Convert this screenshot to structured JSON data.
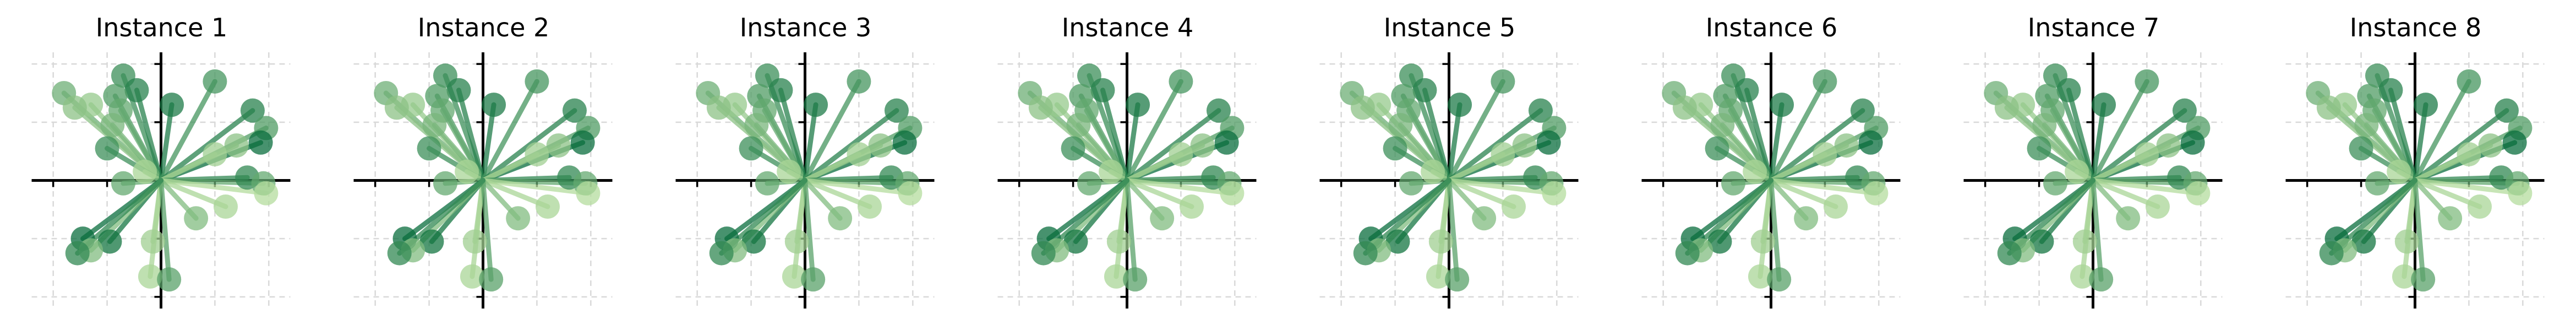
{
  "chart_data": [
    {
      "type": "scatter",
      "title": "Instance 1",
      "xlim": [
        -2.4,
        2.4
      ],
      "ylim": [
        -2.2,
        2.2
      ],
      "grid": true
    },
    {
      "type": "scatter",
      "title": "Instance 2",
      "xlim": [
        -2.4,
        2.4
      ],
      "ylim": [
        -2.2,
        2.2
      ],
      "grid": true
    },
    {
      "type": "scatter",
      "title": "Instance 3",
      "xlim": [
        -2.4,
        2.4
      ],
      "ylim": [
        -2.2,
        2.2
      ],
      "grid": true
    },
    {
      "type": "scatter",
      "title": "Instance 4",
      "xlim": [
        -2.4,
        2.4
      ],
      "ylim": [
        -2.2,
        2.2
      ],
      "grid": true
    },
    {
      "type": "scatter",
      "title": "Instance 5",
      "xlim": [
        -2.4,
        2.4
      ],
      "ylim": [
        -2.2,
        2.2
      ],
      "grid": true
    },
    {
      "type": "scatter",
      "title": "Instance 6",
      "xlim": [
        -2.4,
        2.4
      ],
      "ylim": [
        -2.2,
        2.2
      ],
      "grid": true
    },
    {
      "type": "scatter",
      "title": "Instance 7",
      "xlim": [
        -2.4,
        2.4
      ],
      "ylim": [
        -2.2,
        2.2
      ],
      "grid": true
    },
    {
      "type": "scatter",
      "title": "Instance 8",
      "xlim": [
        -2.4,
        2.4
      ],
      "ylim": [
        -2.2,
        2.2
      ],
      "grid": true
    }
  ],
  "points": [
    {
      "x": -1.8,
      "y": 1.5,
      "shade": 0.45
    },
    {
      "x": -1.3,
      "y": 1.3,
      "shade": 0.25
    },
    {
      "x": -1.6,
      "y": 1.25,
      "shade": 0.3
    },
    {
      "x": -0.7,
      "y": 1.8,
      "shade": 0.7
    },
    {
      "x": -0.45,
      "y": 1.55,
      "shade": 0.8
    },
    {
      "x": -0.85,
      "y": 1.45,
      "shade": 0.6
    },
    {
      "x": -0.75,
      "y": 1.2,
      "shade": 0.5
    },
    {
      "x": -0.9,
      "y": 0.95,
      "shade": 0.4
    },
    {
      "x": -1.0,
      "y": 0.55,
      "shade": 0.7
    },
    {
      "x": -0.3,
      "y": 0.15,
      "shade": 0.15
    },
    {
      "x": -0.7,
      "y": -0.05,
      "shade": 0.5
    },
    {
      "x": 0.2,
      "y": 1.3,
      "shade": 0.85
    },
    {
      "x": 1.0,
      "y": 1.7,
      "shade": 0.65
    },
    {
      "x": 1.7,
      "y": 1.2,
      "shade": 0.8
    },
    {
      "x": 1.95,
      "y": 0.9,
      "shade": 0.6
    },
    {
      "x": 1.85,
      "y": 0.65,
      "shade": 0.95
    },
    {
      "x": 1.4,
      "y": 0.6,
      "shade": 0.3
    },
    {
      "x": 1.0,
      "y": 0.45,
      "shade": 0.2
    },
    {
      "x": 1.6,
      "y": 0.05,
      "shade": 0.75
    },
    {
      "x": 1.9,
      "y": -0.05,
      "shade": 0.5
    },
    {
      "x": 1.95,
      "y": -0.22,
      "shade": 0.1
    },
    {
      "x": 1.2,
      "y": -0.45,
      "shade": 0.15
    },
    {
      "x": 0.65,
      "y": -0.65,
      "shade": 0.35
    },
    {
      "x": -0.15,
      "y": -1.05,
      "shade": 0.2
    },
    {
      "x": -0.2,
      "y": -1.65,
      "shade": 0.15
    },
    {
      "x": 0.15,
      "y": -1.7,
      "shade": 0.55
    },
    {
      "x": -0.95,
      "y": -1.05,
      "shade": 0.9
    },
    {
      "x": -1.45,
      "y": -1.0,
      "shade": 0.95
    },
    {
      "x": -1.3,
      "y": -1.2,
      "shade": 0.35
    },
    {
      "x": -1.55,
      "y": -1.25,
      "shade": 0.75
    }
  ]
}
